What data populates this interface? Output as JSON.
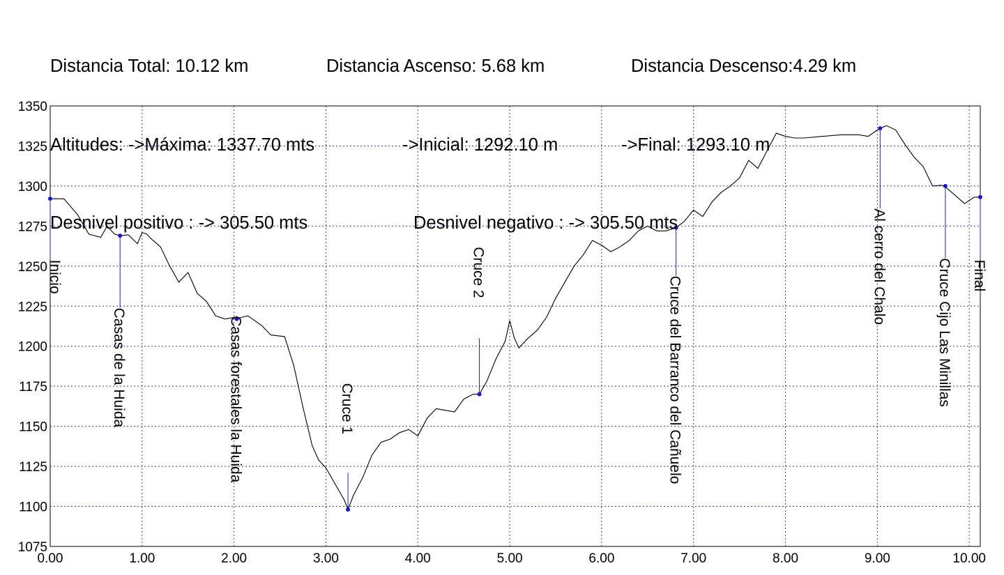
{
  "summary": {
    "distancia_total": "Distancia Total: 10.12 km",
    "distancia_ascenso": "Distancia Ascenso: 5.68 km",
    "distancia_descenso": "Distancia Descenso:4.29 km",
    "altitud_maxima": "Altitudes: ->Máxima: 1337.70 mts",
    "altitud_inicial": "->Inicial: 1292.10 m",
    "altitud_final": "->Final: 1293.10 m",
    "desnivel_positivo": "Desnivel positivo : -> 305.50 mts",
    "desnivel_negativo": "Desnivel negativo : -> 305.50 mts"
  },
  "chart_data": {
    "type": "line",
    "title": "",
    "xlabel": "",
    "ylabel": "",
    "xlim": [
      0,
      10.12
    ],
    "ylim": [
      1075,
      1350
    ],
    "x_ticks": [
      "0.00",
      "1.00",
      "2.00",
      "3.00",
      "4.00",
      "5.00",
      "6.00",
      "7.00",
      "8.00",
      "9.00",
      "10.00"
    ],
    "y_ticks": [
      "1350",
      "1325",
      "1300",
      "1275",
      "1250",
      "1225",
      "1200",
      "1175",
      "1150",
      "1125",
      "1100",
      "1075"
    ],
    "grid": true,
    "line_color": "#000000",
    "marker_color": "#1a1acc",
    "series": [
      {
        "x": [
          0.0,
          0.15,
          0.3,
          0.42,
          0.55,
          0.62,
          0.7,
          0.76,
          0.85,
          0.95,
          1.0,
          1.05,
          1.1,
          1.2,
          1.3,
          1.4,
          1.5,
          1.6,
          1.7,
          1.8,
          1.9,
          2.0,
          2.05,
          2.15,
          2.3,
          2.4,
          2.55,
          2.65,
          2.75,
          2.85,
          2.92,
          3.0,
          3.1,
          3.2,
          3.24,
          3.3,
          3.4,
          3.5,
          3.6,
          3.7,
          3.8,
          3.9,
          4.0,
          4.1,
          4.2,
          4.3,
          4.4,
          4.5,
          4.6,
          4.67,
          4.75,
          4.85,
          4.95,
          5.0,
          5.05,
          5.1,
          5.2,
          5.3,
          5.4,
          5.5,
          5.6,
          5.7,
          5.8,
          5.9,
          6.0,
          6.1,
          6.2,
          6.3,
          6.4,
          6.5,
          6.6,
          6.7,
          6.81,
          6.9,
          7.0,
          7.1,
          7.2,
          7.3,
          7.4,
          7.5,
          7.6,
          7.7,
          7.8,
          7.9,
          8.0,
          8.1,
          8.2,
          8.4,
          8.6,
          8.8,
          8.9,
          9.0,
          9.03,
          9.1,
          9.2,
          9.3,
          9.4,
          9.5,
          9.6,
          9.7,
          9.74,
          9.85,
          9.95,
          10.0,
          10.05,
          10.12
        ],
        "y": [
          1292.1,
          1292.0,
          1282.0,
          1270.0,
          1268.0,
          1275.0,
          1270.0,
          1269.0,
          1269.5,
          1264.0,
          1271.0,
          1270.0,
          1267.0,
          1262.0,
          1250.0,
          1240.0,
          1246.0,
          1233.0,
          1228.0,
          1219.0,
          1217.0,
          1218.0,
          1217.5,
          1219.0,
          1213.0,
          1207.0,
          1206.0,
          1188.0,
          1162.0,
          1138.0,
          1129.0,
          1124.0,
          1114.0,
          1104.0,
          1098.0,
          1107.0,
          1118.0,
          1132.0,
          1140.0,
          1142.0,
          1146.0,
          1148.0,
          1144.0,
          1155.0,
          1161.0,
          1160.0,
          1159.0,
          1167.0,
          1170.0,
          1170.0,
          1178.0,
          1192.0,
          1203.0,
          1216.0,
          1205.0,
          1199.0,
          1205.0,
          1210.0,
          1218.0,
          1230.0,
          1240.0,
          1250.0,
          1257.0,
          1266.0,
          1263.0,
          1259.0,
          1262.0,
          1266.0,
          1272.0,
          1275.0,
          1272.0,
          1272.0,
          1274.0,
          1278.0,
          1285.0,
          1281.0,
          1290.0,
          1296.0,
          1300.0,
          1305.0,
          1316.0,
          1311.0,
          1322.0,
          1333.0,
          1331.0,
          1330.0,
          1330.0,
          1331.0,
          1332.0,
          1332.0,
          1331.0,
          1335.0,
          1336.0,
          1337.7,
          1335.0,
          1326.0,
          1318.0,
          1312.0,
          1300.0,
          1300.5,
          1299.5,
          1294.0,
          1289.0,
          1291.0,
          1293.0,
          1293.1
        ]
      }
    ],
    "waypoints": [
      {
        "name": "Inicio",
        "x": 0.0,
        "y": 1292.1,
        "label_top": 1254,
        "stem_to": 1254
      },
      {
        "name": "Casas de la Huida",
        "x": 0.76,
        "y": 1269.0,
        "label_top": 1224,
        "stem_to": 1224
      },
      {
        "name": "Casas forestales la Huida",
        "x": 2.03,
        "y": 1217.0,
        "label_top": 1219,
        "stem_to": 1219
      },
      {
        "name": "Cruce 1",
        "x": 3.24,
        "y": 1098.0,
        "label_top": 1177,
        "stem_to": 1121,
        "label_above": true
      },
      {
        "name": "Cruce 2",
        "x": 4.67,
        "y": 1170.0,
        "label_top": 1262,
        "stem_to": 1205,
        "label_above": true
      },
      {
        "name": "Cruce del Barranco del Cañuelo",
        "x": 6.81,
        "y": 1274.0,
        "label_top": 1244,
        "stem_to": 1244
      },
      {
        "name": "Al cerro del Chalo",
        "x": 9.03,
        "y": 1336.0,
        "label_top": 1286,
        "stem_to": 1286
      },
      {
        "name": "Cruce Cijo Las Minillas",
        "x": 9.74,
        "y": 1300.0,
        "label_top": 1255,
        "stem_to": 1255
      },
      {
        "name": "Final",
        "x": 10.12,
        "y": 1293.1,
        "label_top": 1254,
        "stem_to": 1254
      }
    ]
  }
}
